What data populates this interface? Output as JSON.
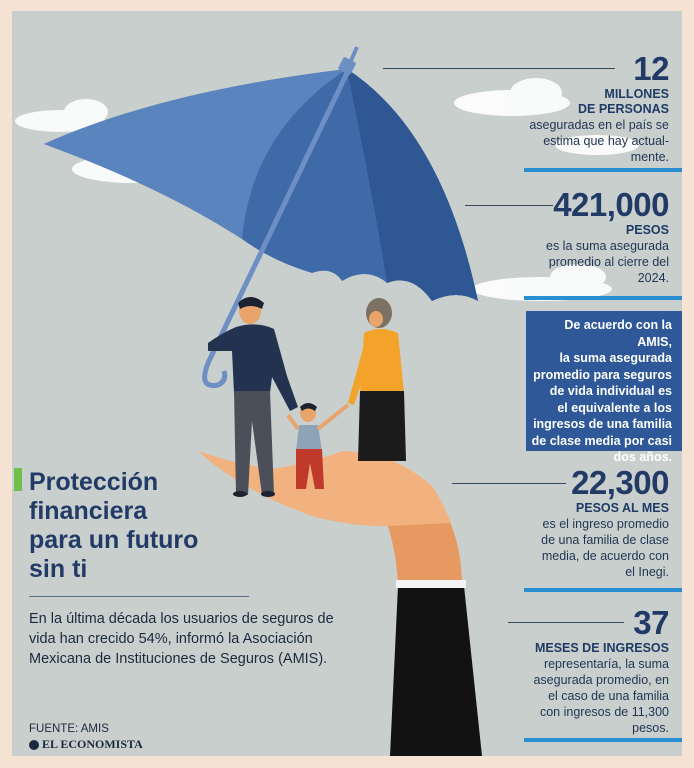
{
  "title_lines": [
    "Protección",
    "financiera",
    "para un futuro",
    "sin ti"
  ],
  "intro": "En la última década los usuarios de seguros de vida han crecido 54%, informó la Asociación Mexicana de Instituciones de Seguros (AMIS).",
  "stats": [
    {
      "number": "12",
      "unit_lines": [
        "MILLONES",
        "DE PERSONAS"
      ],
      "desc_lines": [
        "aseguradas en el país se",
        "estima que hay actual-",
        "mente."
      ]
    },
    {
      "number": "421,000",
      "unit_lines": [
        "PESOS"
      ],
      "desc_lines": [
        "es la suma asegurada",
        "promedio al cierre del",
        "2024."
      ]
    },
    {
      "number": "22,300",
      "unit_lines": [
        "PESOS AL MES"
      ],
      "desc_lines": [
        "es el ingreso promedio",
        "de una familia de clase",
        "media, de acuerdo con",
        "el Inegi."
      ]
    },
    {
      "number": "37",
      "unit_lines": [
        "MESES DE INGRESOS"
      ],
      "desc_lines": [
        "representaría, la suma",
        "asegurada promedio, en",
        "el caso de una familia",
        "con ingresos de 11,300",
        "pesos."
      ]
    }
  ],
  "callout_lines": [
    "De acuerdo con la AMIS,",
    "la suma asegurada",
    "promedio para seguros",
    "de vida individual es",
    "el equivalente a los",
    "ingresos de una familia",
    "de clase media por casi",
    "dos años."
  ],
  "source": "FUENTE: AMIS",
  "brand": "EL ECONOMISTA",
  "colors": {
    "background": "#c9cfcd",
    "frame": "#f6e3d3",
    "navy": "#223a66",
    "umbrella": "#3f6aa8",
    "accent_bar": "#2a8fd2",
    "title_marker": "#6fbf4a",
    "callout_bg": "#2e5898"
  }
}
